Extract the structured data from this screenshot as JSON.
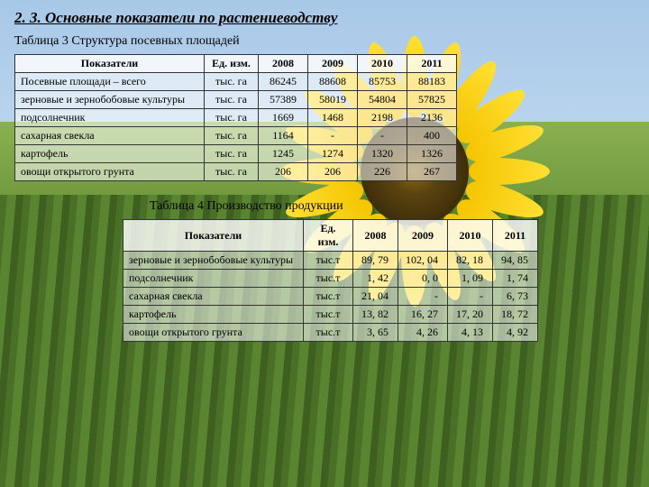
{
  "heading": "2. 3. Основные показатели по растениеводству",
  "table1": {
    "caption": "Таблица 3 Структура посевных площадей",
    "headers": [
      "Показатели",
      "Ед. изм.",
      "2008",
      "2009",
      "2010",
      "2011"
    ],
    "rows": [
      [
        "Посевные площади – всего",
        "тыс. га",
        "86245",
        "88608",
        "85753",
        "88183"
      ],
      [
        "зерновые и зернобобовые культуры",
        "тыс. га",
        "57389",
        "58019",
        "54804",
        "57825"
      ],
      [
        "подсолнечник",
        "тыс. га",
        "1669",
        "1468",
        "2198",
        "2136"
      ],
      [
        "сахарная свекла",
        "тыс. га",
        "1164",
        "-",
        "-",
        "400"
      ],
      [
        "картофель",
        "тыс. га",
        "1245",
        "1274",
        "1320",
        "1326"
      ],
      [
        "овощи открытого грунта",
        "тыс. га",
        "206",
        "206",
        "226",
        "267"
      ]
    ],
    "col_widths": [
      "210px",
      "60px",
      "55px",
      "55px",
      "55px",
      "55px"
    ]
  },
  "table2": {
    "caption": "Таблица 4 Производство продукции",
    "headers": [
      "Показатели",
      "Ед. изм.",
      "2008",
      "2009",
      "2010",
      "2011"
    ],
    "rows": [
      [
        "зерновые и зернобобовые культуры",
        "тыс.т",
        "89, 79",
        "102, 04",
        "82, 18",
        "94, 85"
      ],
      [
        "подсолнечник",
        "тыс.т",
        "1, 42",
        "0, 0",
        "1, 09",
        "1, 74"
      ],
      [
        "сахарная свекла",
        "тыс.т",
        "21, 04",
        "-",
        "-",
        "6, 73"
      ],
      [
        "картофель",
        "тыс.т",
        "13, 82",
        "16, 27",
        "17, 20",
        "18, 72"
      ],
      [
        "овощи открытого грунта",
        "тыс.т",
        "3, 65",
        "4, 26",
        "4, 13",
        "4, 92"
      ]
    ],
    "col_widths": [
      "200px",
      "55px",
      "50px",
      "55px",
      "50px",
      "50px"
    ]
  },
  "colors": {
    "border": "#333",
    "table_bg": "rgba(255,255,255,0.55)"
  }
}
